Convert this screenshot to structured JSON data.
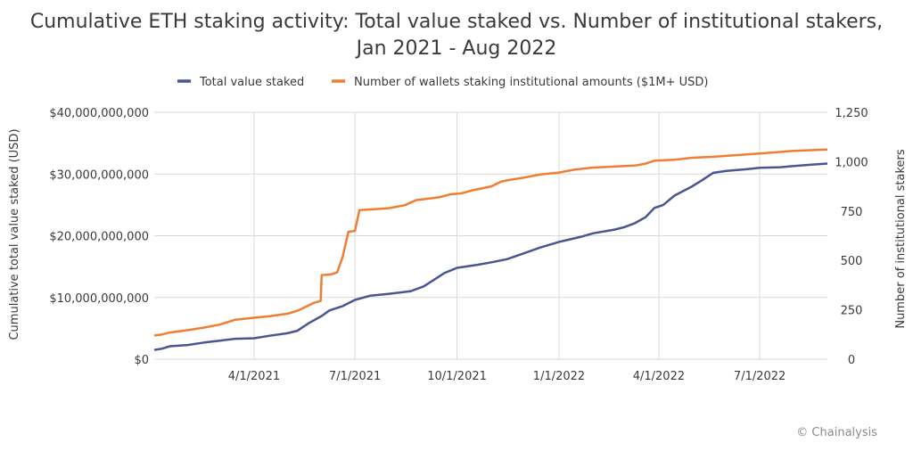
{
  "title_line1": "Cumulative ETH staking activity: Total value staked vs. Number of institutional stakers,",
  "title_line2": "Jan 2021 - Aug 2022",
  "source": "© Chainalysis",
  "colors": {
    "total_value": "#4a5690",
    "institutional": "#ef7d32",
    "grid": "#d9d9d9"
  },
  "chart_data": {
    "type": "line",
    "title": "Cumulative ETH staking activity: Total value staked vs. Number of institutional stakers, Jan 2021 - Aug 2022",
    "xlabel": "",
    "ylabel": "Cumulative total value staked (USD)",
    "y2label": "Number of institutional stakers",
    "xlim": [
      "2021-01-01",
      "2022-08-31"
    ],
    "ylim": [
      0,
      40000000000
    ],
    "y2lim": [
      0,
      1250
    ],
    "x_ticks": [
      "4/1/2021",
      "7/1/2021",
      "10/1/2021",
      "1/1/2022",
      "4/1/2022",
      "7/1/2022"
    ],
    "x_tick_dates": [
      "2021-04-01",
      "2021-07-01",
      "2021-10-01",
      "2022-01-01",
      "2022-04-01",
      "2022-07-01"
    ],
    "y_ticks": [
      "$0",
      "$10,000,000,000",
      "$20,000,000,000",
      "$30,000,000,000",
      "$40,000,000,000"
    ],
    "y_tick_values": [
      0,
      10000000000,
      20000000000,
      30000000000,
      40000000000
    ],
    "y2_ticks": [
      "0",
      "250",
      "500",
      "750",
      "1,000",
      "1,250"
    ],
    "y2_tick_values": [
      0,
      250,
      500,
      750,
      1000,
      1250
    ],
    "grid": true,
    "legend_position": "top",
    "series": [
      {
        "name": "Total value staked",
        "axis": "left",
        "points": [
          [
            "2021-01-01",
            1500000000
          ],
          [
            "2021-01-08",
            1700000000
          ],
          [
            "2021-01-15",
            2100000000
          ],
          [
            "2021-01-31",
            2300000000
          ],
          [
            "2021-02-15",
            2700000000
          ],
          [
            "2021-03-01",
            3000000000
          ],
          [
            "2021-03-15",
            3300000000
          ],
          [
            "2021-04-01",
            3400000000
          ],
          [
            "2021-04-15",
            3800000000
          ],
          [
            "2021-05-01",
            4200000000
          ],
          [
            "2021-05-10",
            4600000000
          ],
          [
            "2021-05-20",
            5800000000
          ],
          [
            "2021-06-01",
            7000000000
          ],
          [
            "2021-06-08",
            7900000000
          ],
          [
            "2021-06-20",
            8600000000
          ],
          [
            "2021-07-01",
            9600000000
          ],
          [
            "2021-07-15",
            10300000000
          ],
          [
            "2021-08-01",
            10600000000
          ],
          [
            "2021-08-20",
            11000000000
          ],
          [
            "2021-09-01",
            11800000000
          ],
          [
            "2021-09-08",
            12600000000
          ],
          [
            "2021-09-20",
            14000000000
          ],
          [
            "2021-10-01",
            14800000000
          ],
          [
            "2021-10-20",
            15300000000
          ],
          [
            "2021-11-01",
            15700000000
          ],
          [
            "2021-11-15",
            16200000000
          ],
          [
            "2021-12-01",
            17200000000
          ],
          [
            "2021-12-15",
            18100000000
          ],
          [
            "2022-01-01",
            19000000000
          ],
          [
            "2022-01-20",
            19800000000
          ],
          [
            "2022-02-01",
            20400000000
          ],
          [
            "2022-02-20",
            21000000000
          ],
          [
            "2022-03-01",
            21400000000
          ],
          [
            "2022-03-10",
            22000000000
          ],
          [
            "2022-03-20",
            23000000000
          ],
          [
            "2022-03-28",
            24500000000
          ],
          [
            "2022-04-05",
            25000000000
          ],
          [
            "2022-04-15",
            26500000000
          ],
          [
            "2022-05-01",
            28000000000
          ],
          [
            "2022-05-10",
            29000000000
          ],
          [
            "2022-05-20",
            30200000000
          ],
          [
            "2022-06-01",
            30500000000
          ],
          [
            "2022-06-20",
            30800000000
          ],
          [
            "2022-07-01",
            31000000000
          ],
          [
            "2022-07-20",
            31100000000
          ],
          [
            "2022-08-01",
            31300000000
          ],
          [
            "2022-08-15",
            31500000000
          ],
          [
            "2022-08-31",
            31700000000
          ]
        ]
      },
      {
        "name": "Number of wallets staking institutional amounts ($1M+ USD)",
        "axis": "right",
        "points": [
          [
            "2021-01-01",
            120
          ],
          [
            "2021-01-08",
            125
          ],
          [
            "2021-01-15",
            135
          ],
          [
            "2021-02-01",
            148
          ],
          [
            "2021-02-15",
            160
          ],
          [
            "2021-03-01",
            175
          ],
          [
            "2021-03-15",
            200
          ],
          [
            "2021-04-01",
            210
          ],
          [
            "2021-04-15",
            218
          ],
          [
            "2021-05-01",
            230
          ],
          [
            "2021-05-10",
            245
          ],
          [
            "2021-05-25",
            285
          ],
          [
            "2021-05-31",
            295
          ],
          [
            "2021-06-01",
            425
          ],
          [
            "2021-06-10",
            430
          ],
          [
            "2021-06-15",
            440
          ],
          [
            "2021-06-20",
            520
          ],
          [
            "2021-06-25",
            645
          ],
          [
            "2021-07-01",
            650
          ],
          [
            "2021-07-05",
            755
          ],
          [
            "2021-07-20",
            760
          ],
          [
            "2021-08-01",
            765
          ],
          [
            "2021-08-15",
            780
          ],
          [
            "2021-08-25",
            805
          ],
          [
            "2021-09-01",
            810
          ],
          [
            "2021-09-15",
            820
          ],
          [
            "2021-09-25",
            835
          ],
          [
            "2021-10-05",
            840
          ],
          [
            "2021-10-15",
            855
          ],
          [
            "2021-11-01",
            875
          ],
          [
            "2021-11-10",
            900
          ],
          [
            "2021-11-20",
            910
          ],
          [
            "2021-12-01",
            920
          ],
          [
            "2021-12-15",
            935
          ],
          [
            "2022-01-01",
            945
          ],
          [
            "2022-01-15",
            960
          ],
          [
            "2022-02-01",
            970
          ],
          [
            "2022-02-20",
            975
          ],
          [
            "2022-03-10",
            980
          ],
          [
            "2022-03-20",
            990
          ],
          [
            "2022-03-28",
            1005
          ],
          [
            "2022-04-15",
            1010
          ],
          [
            "2022-05-01",
            1020
          ],
          [
            "2022-05-20",
            1025
          ],
          [
            "2022-06-15",
            1035
          ],
          [
            "2022-07-10",
            1045
          ],
          [
            "2022-08-01",
            1055
          ],
          [
            "2022-08-31",
            1062
          ]
        ]
      }
    ]
  }
}
